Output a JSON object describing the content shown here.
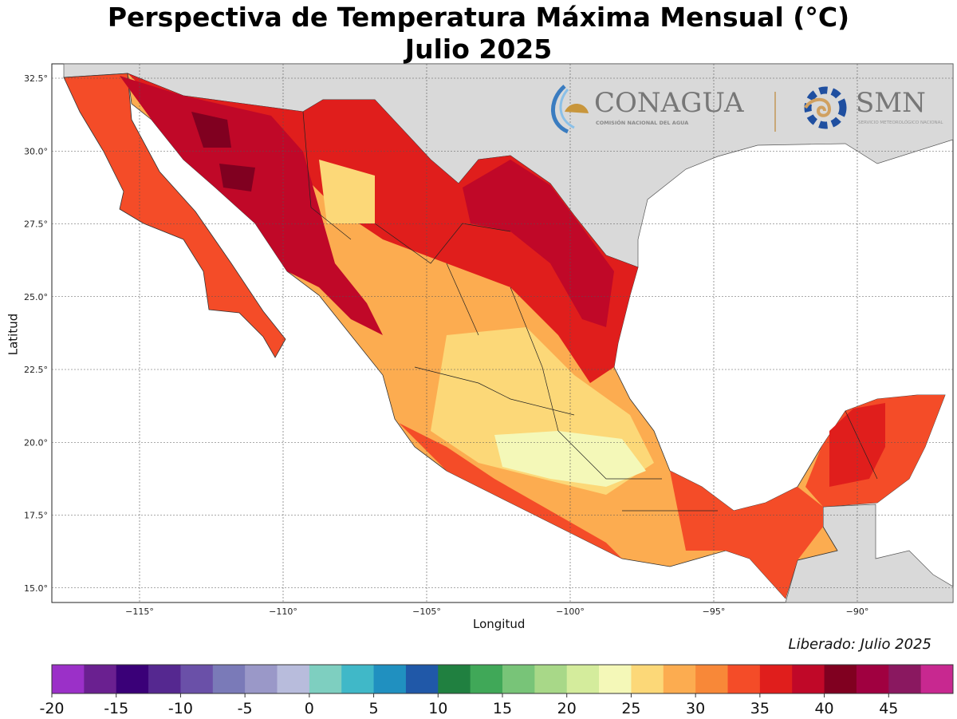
{
  "title": {
    "line1": "Perspectiva de Temperatura Máxima Mensual (°C)",
    "line2": "Julio 2025"
  },
  "axes": {
    "xlabel": "Longitud",
    "ylabel": "Latitud",
    "x_ticks": [
      "−115°",
      "−110°",
      "−105°",
      "−100°",
      "−95°",
      "−90°"
    ],
    "x_tick_values": [
      -115,
      -110,
      -105,
      -100,
      -95,
      -90
    ],
    "y_ticks": [
      "32.5°",
      "30.0°",
      "27.5°",
      "25.0°",
      "22.5°",
      "20.0°",
      "17.5°",
      "15.0°"
    ],
    "y_tick_values": [
      32.5,
      30,
      27.5,
      25,
      22.5,
      20,
      17.5,
      15
    ],
    "lon_range": [
      -118,
      -86.7
    ],
    "lat_range": [
      14.5,
      33
    ]
  },
  "logos": {
    "conagua": {
      "name": "CONAGUA",
      "subtitle": "COMISIÓN NACIONAL DEL AGUA"
    },
    "smn": {
      "name": "SMN",
      "subtitle": "SERVICIO METEOROLÓGICO NACIONAL"
    }
  },
  "released": "Liberado: Julio 2025",
  "colorbar": {
    "min": -20,
    "max": 50,
    "step": 2.5,
    "labels": [
      "-20",
      "-15",
      "-10",
      "-5",
      "0",
      "5",
      "10",
      "15",
      "20",
      "25",
      "30",
      "35",
      "40",
      "45"
    ],
    "colors": [
      "#9b30c8",
      "#6a2090",
      "#3a0078",
      "#552890",
      "#6a50a8",
      "#7a7ab8",
      "#9a98c8",
      "#b8bcdc",
      "#7ecfc0",
      "#40b8c8",
      "#2090c0",
      "#2058a8",
      "#208040",
      "#40a858",
      "#78c478",
      "#a8d888",
      "#d4ec9c",
      "#f4f8b8",
      "#fcd878",
      "#fcac50",
      "#f88838",
      "#f44c28",
      "#e01e1c",
      "#c00828",
      "#800020",
      "#a00040",
      "#8a1860",
      "#c82890"
    ]
  },
  "map_colors": {
    "land_other": "#d9d9d9",
    "ocean": "#ffffff",
    "base": "#fcac50",
    "hot": "#f44c28",
    "hotter": "#e01e1c",
    "hottest": "#c00828",
    "extreme": "#800020",
    "mild": "#fcd878",
    "cool": "#f4f8b8"
  }
}
